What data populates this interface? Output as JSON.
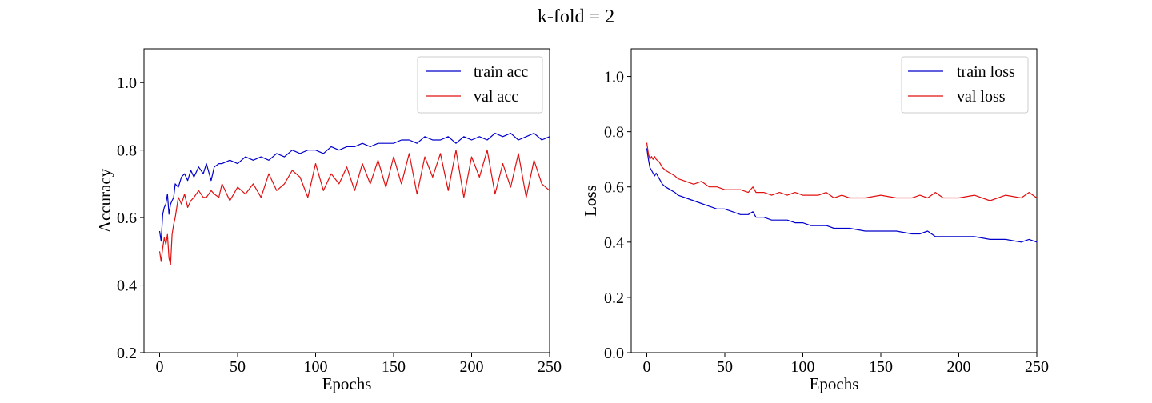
{
  "figure": {
    "suptitle": "k-fold = 2"
  },
  "colors": {
    "train": "#0000cc",
    "val": "#e01010",
    "axes": "#000000"
  },
  "chart_data": [
    {
      "type": "line",
      "title": "",
      "xlabel": "Epochs",
      "ylabel": "Accuracy",
      "xlim": [
        -10,
        250
      ],
      "ylim": [
        0.2,
        1.1
      ],
      "xticks": [
        0,
        50,
        100,
        150,
        200,
        250
      ],
      "yticks": [
        0.2,
        0.4,
        0.6,
        0.8,
        1.0
      ],
      "ytick_labels": [
        "0.2",
        "0.4",
        "0.6",
        "0.8",
        "1.0"
      ],
      "grid": false,
      "legend_position": "top-right",
      "series": [
        {
          "name": "train acc",
          "color": "#0000cc",
          "x": [
            0,
            1,
            2,
            3,
            4,
            5,
            6,
            7,
            8,
            9,
            10,
            12,
            14,
            16,
            18,
            20,
            22,
            25,
            28,
            30,
            33,
            35,
            38,
            40,
            45,
            50,
            55,
            60,
            65,
            70,
            75,
            80,
            85,
            90,
            95,
            100,
            105,
            110,
            115,
            120,
            125,
            130,
            135,
            140,
            145,
            150,
            155,
            160,
            165,
            170,
            175,
            180,
            185,
            190,
            195,
            200,
            205,
            210,
            215,
            220,
            225,
            230,
            235,
            240,
            245,
            250
          ],
          "y": [
            0.56,
            0.53,
            0.61,
            0.63,
            0.64,
            0.67,
            0.61,
            0.64,
            0.65,
            0.66,
            0.7,
            0.69,
            0.72,
            0.73,
            0.71,
            0.74,
            0.72,
            0.75,
            0.73,
            0.76,
            0.71,
            0.75,
            0.76,
            0.76,
            0.77,
            0.76,
            0.78,
            0.77,
            0.78,
            0.77,
            0.79,
            0.78,
            0.8,
            0.79,
            0.8,
            0.8,
            0.79,
            0.81,
            0.8,
            0.81,
            0.81,
            0.82,
            0.81,
            0.82,
            0.82,
            0.82,
            0.83,
            0.83,
            0.82,
            0.84,
            0.83,
            0.83,
            0.84,
            0.82,
            0.84,
            0.83,
            0.84,
            0.83,
            0.85,
            0.84,
            0.85,
            0.83,
            0.84,
            0.85,
            0.83,
            0.84
          ]
        },
        {
          "name": "val acc",
          "color": "#e01010",
          "x": [
            0,
            1,
            2,
            3,
            4,
            5,
            6,
            7,
            8,
            9,
            10,
            12,
            14,
            16,
            18,
            20,
            22,
            25,
            28,
            30,
            33,
            35,
            38,
            40,
            45,
            50,
            55,
            60,
            65,
            70,
            75,
            80,
            85,
            90,
            95,
            100,
            105,
            110,
            115,
            120,
            125,
            130,
            135,
            140,
            145,
            150,
            155,
            160,
            165,
            170,
            175,
            180,
            185,
            190,
            195,
            200,
            205,
            210,
            215,
            220,
            225,
            230,
            235,
            240,
            245,
            250
          ],
          "y": [
            0.5,
            0.47,
            0.51,
            0.54,
            0.52,
            0.55,
            0.48,
            0.46,
            0.55,
            0.58,
            0.6,
            0.66,
            0.64,
            0.67,
            0.63,
            0.65,
            0.66,
            0.68,
            0.66,
            0.66,
            0.68,
            0.67,
            0.66,
            0.7,
            0.65,
            0.69,
            0.67,
            0.7,
            0.66,
            0.73,
            0.68,
            0.7,
            0.74,
            0.72,
            0.66,
            0.76,
            0.68,
            0.73,
            0.7,
            0.75,
            0.68,
            0.76,
            0.7,
            0.77,
            0.69,
            0.78,
            0.7,
            0.79,
            0.67,
            0.78,
            0.72,
            0.79,
            0.68,
            0.8,
            0.66,
            0.78,
            0.72,
            0.8,
            0.67,
            0.76,
            0.69,
            0.79,
            0.66,
            0.77,
            0.7,
            0.68
          ]
        }
      ]
    },
    {
      "type": "line",
      "title": "",
      "xlabel": "Epochs",
      "ylabel": "Loss",
      "xlim": [
        -10,
        250
      ],
      "ylim": [
        0.0,
        1.1
      ],
      "xticks": [
        0,
        50,
        100,
        150,
        200,
        250
      ],
      "yticks": [
        0.0,
        0.2,
        0.4,
        0.6,
        0.8,
        1.0
      ],
      "ytick_labels": [
        "0.0",
        "0.2",
        "0.4",
        "0.6",
        "0.8",
        "1.0"
      ],
      "grid": false,
      "legend_position": "top-right",
      "series": [
        {
          "name": "train loss",
          "color": "#0000cc",
          "x": [
            0,
            1,
            2,
            3,
            4,
            5,
            6,
            8,
            10,
            12,
            15,
            18,
            20,
            25,
            30,
            35,
            40,
            45,
            50,
            55,
            60,
            65,
            68,
            70,
            75,
            80,
            85,
            90,
            95,
            100,
            105,
            110,
            115,
            120,
            125,
            130,
            140,
            150,
            160,
            170,
            175,
            180,
            185,
            190,
            200,
            210,
            220,
            230,
            240,
            245,
            250
          ],
          "y": [
            0.74,
            0.7,
            0.67,
            0.66,
            0.65,
            0.64,
            0.65,
            0.63,
            0.61,
            0.6,
            0.59,
            0.58,
            0.57,
            0.56,
            0.55,
            0.54,
            0.53,
            0.52,
            0.52,
            0.51,
            0.5,
            0.5,
            0.51,
            0.49,
            0.49,
            0.48,
            0.48,
            0.48,
            0.47,
            0.47,
            0.46,
            0.46,
            0.46,
            0.45,
            0.45,
            0.45,
            0.44,
            0.44,
            0.44,
            0.43,
            0.43,
            0.44,
            0.42,
            0.42,
            0.42,
            0.42,
            0.41,
            0.41,
            0.4,
            0.41,
            0.4
          ]
        },
        {
          "name": "val loss",
          "color": "#e01010",
          "x": [
            0,
            1,
            2,
            3,
            4,
            5,
            6,
            8,
            10,
            12,
            15,
            18,
            20,
            25,
            30,
            35,
            40,
            45,
            50,
            55,
            60,
            65,
            68,
            70,
            75,
            80,
            85,
            90,
            95,
            100,
            105,
            110,
            115,
            120,
            125,
            130,
            140,
            150,
            160,
            170,
            175,
            180,
            185,
            190,
            200,
            210,
            220,
            230,
            240,
            245,
            250
          ],
          "y": [
            0.76,
            0.72,
            0.7,
            0.71,
            0.7,
            0.71,
            0.7,
            0.69,
            0.67,
            0.66,
            0.65,
            0.64,
            0.63,
            0.62,
            0.61,
            0.62,
            0.6,
            0.6,
            0.59,
            0.59,
            0.59,
            0.58,
            0.6,
            0.58,
            0.58,
            0.57,
            0.58,
            0.57,
            0.58,
            0.57,
            0.57,
            0.57,
            0.58,
            0.56,
            0.57,
            0.56,
            0.56,
            0.57,
            0.56,
            0.56,
            0.57,
            0.56,
            0.58,
            0.56,
            0.56,
            0.57,
            0.55,
            0.57,
            0.56,
            0.58,
            0.56
          ]
        }
      ]
    }
  ]
}
